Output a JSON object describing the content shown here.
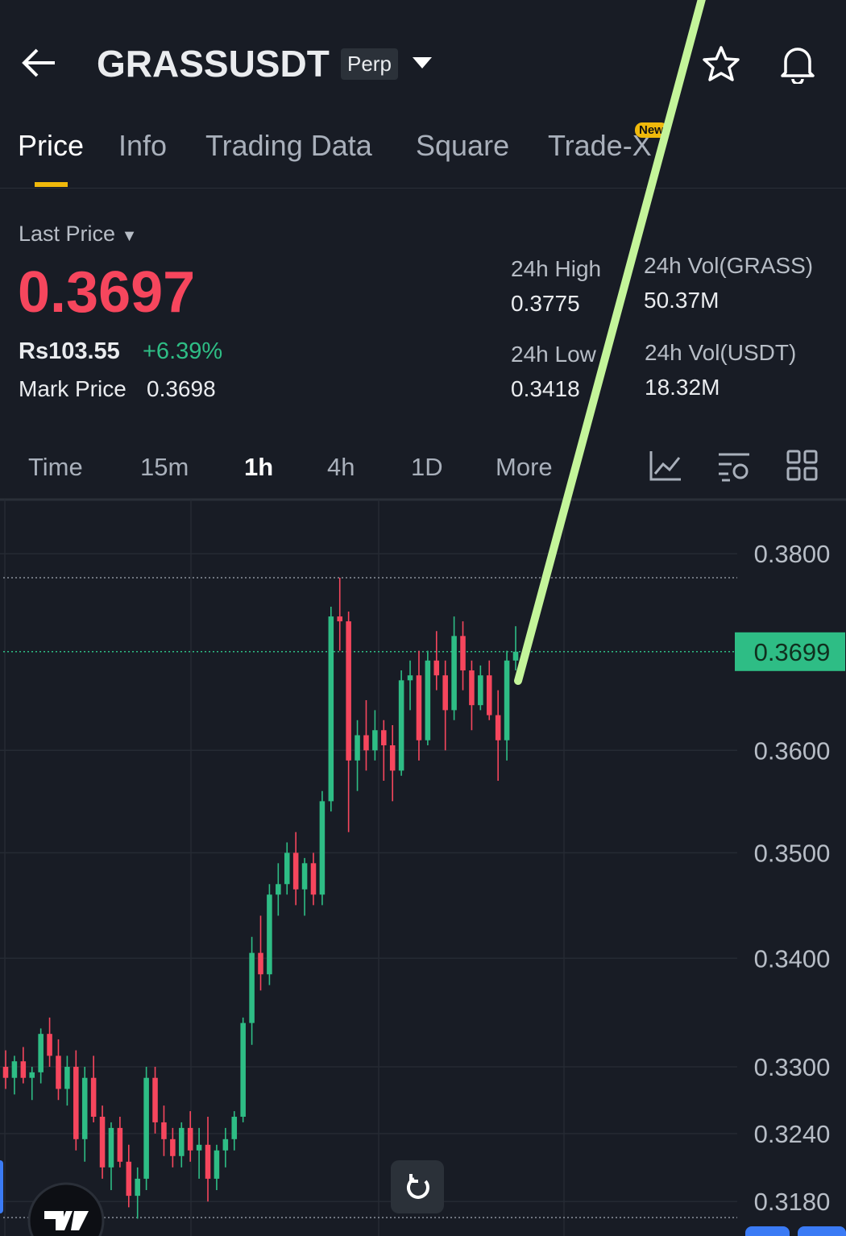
{
  "header": {
    "symbol": "GRASSUSDT",
    "badge": "Perp"
  },
  "tabs": {
    "items": [
      "Price",
      "Info",
      "Trading Data",
      "Square",
      "Trade-X"
    ],
    "active": 0,
    "new_badge": "New"
  },
  "last_price": {
    "label": "Last Price",
    "value": "0.3697",
    "local": "Rs103.55",
    "change": "+6.39%",
    "mark_label": "Mark Price",
    "mark_value": "0.3698"
  },
  "stats": [
    {
      "label": "24h High",
      "value": "0.3775"
    },
    {
      "label": "24h Vol(GRASS)",
      "value": "50.37M"
    },
    {
      "label": "24h Low",
      "value": "0.3418"
    },
    {
      "label": "24h Vol(USDT)",
      "value": "18.32M"
    }
  ],
  "intervals": {
    "items": [
      "Time",
      "15m",
      "1h",
      "4h",
      "1D",
      "More"
    ],
    "active": 2
  },
  "chart_data": {
    "type": "candlestick",
    "log_scale": true,
    "ylim": [
      0.315,
      0.3857
    ],
    "yticks": [
      {
        "value": 0.38,
        "label": "0.3800"
      },
      {
        "value": 0.36,
        "label": "0.3600"
      },
      {
        "value": 0.35,
        "label": "0.3500"
      },
      {
        "value": 0.34,
        "label": "0.3400"
      },
      {
        "value": 0.33,
        "label": "0.3300"
      },
      {
        "value": 0.324,
        "label": "0.3240"
      },
      {
        "value": 0.318,
        "label": "0.3180"
      }
    ],
    "last_tag": {
      "value": 0.3699,
      "label": "0.3699"
    },
    "high_line": 0.3775,
    "low_line": 0.3166,
    "up_color": "#2ebd85",
    "down_color": "#f6465d",
    "ohlc": [
      [
        0.33,
        0.3315,
        0.328,
        0.329
      ],
      [
        0.329,
        0.331,
        0.3275,
        0.3305
      ],
      [
        0.3305,
        0.3318,
        0.3285,
        0.329
      ],
      [
        0.329,
        0.33,
        0.327,
        0.3295
      ],
      [
        0.3295,
        0.3335,
        0.3285,
        0.333
      ],
      [
        0.333,
        0.3345,
        0.33,
        0.331
      ],
      [
        0.331,
        0.3325,
        0.327,
        0.328
      ],
      [
        0.328,
        0.331,
        0.3265,
        0.33
      ],
      [
        0.33,
        0.3315,
        0.3225,
        0.3235
      ],
      [
        0.3235,
        0.33,
        0.3215,
        0.329
      ],
      [
        0.329,
        0.331,
        0.325,
        0.3255
      ],
      [
        0.3255,
        0.3265,
        0.32,
        0.321
      ],
      [
        0.321,
        0.325,
        0.319,
        0.3245
      ],
      [
        0.3245,
        0.3255,
        0.321,
        0.3215
      ],
      [
        0.3215,
        0.323,
        0.3175,
        0.3185
      ],
      [
        0.3185,
        0.321,
        0.3165,
        0.32
      ],
      [
        0.32,
        0.33,
        0.319,
        0.329
      ],
      [
        0.329,
        0.33,
        0.324,
        0.325
      ],
      [
        0.325,
        0.3265,
        0.322,
        0.3235
      ],
      [
        0.3235,
        0.3245,
        0.321,
        0.322
      ],
      [
        0.322,
        0.325,
        0.321,
        0.3245
      ],
      [
        0.3245,
        0.326,
        0.3215,
        0.3225
      ],
      [
        0.3225,
        0.3245,
        0.32,
        0.323
      ],
      [
        0.323,
        0.3255,
        0.318,
        0.32
      ],
      [
        0.32,
        0.323,
        0.319,
        0.3225
      ],
      [
        0.3225,
        0.3245,
        0.321,
        0.3235
      ],
      [
        0.3235,
        0.326,
        0.3225,
        0.3255
      ],
      [
        0.3255,
        0.3345,
        0.325,
        0.334
      ],
      [
        0.334,
        0.342,
        0.332,
        0.3405
      ],
      [
        0.3405,
        0.344,
        0.337,
        0.3385
      ],
      [
        0.3385,
        0.347,
        0.3375,
        0.346
      ],
      [
        0.346,
        0.349,
        0.344,
        0.347
      ],
      [
        0.347,
        0.351,
        0.346,
        0.35
      ],
      [
        0.35,
        0.352,
        0.345,
        0.3465
      ],
      [
        0.3465,
        0.3495,
        0.344,
        0.349
      ],
      [
        0.349,
        0.35,
        0.345,
        0.346
      ],
      [
        0.346,
        0.356,
        0.345,
        0.355
      ],
      [
        0.355,
        0.3745,
        0.354,
        0.3735
      ],
      [
        0.3735,
        0.3775,
        0.37,
        0.373
      ],
      [
        0.373,
        0.374,
        0.352,
        0.359
      ],
      [
        0.359,
        0.363,
        0.356,
        0.3615
      ],
      [
        0.3615,
        0.365,
        0.358,
        0.36
      ],
      [
        0.36,
        0.364,
        0.359,
        0.362
      ],
      [
        0.362,
        0.363,
        0.357,
        0.3605
      ],
      [
        0.3605,
        0.3625,
        0.355,
        0.358
      ],
      [
        0.358,
        0.368,
        0.3575,
        0.367
      ],
      [
        0.367,
        0.369,
        0.364,
        0.3675
      ],
      [
        0.3675,
        0.37,
        0.359,
        0.361
      ],
      [
        0.361,
        0.37,
        0.3605,
        0.369
      ],
      [
        0.369,
        0.372,
        0.366,
        0.3675
      ],
      [
        0.3675,
        0.369,
        0.36,
        0.364
      ],
      [
        0.364,
        0.3735,
        0.363,
        0.3715
      ],
      [
        0.3715,
        0.373,
        0.366,
        0.368
      ],
      [
        0.368,
        0.369,
        0.362,
        0.3645
      ],
      [
        0.3645,
        0.3685,
        0.364,
        0.3675
      ],
      [
        0.3675,
        0.369,
        0.363,
        0.3635
      ],
      [
        0.3635,
        0.366,
        0.357,
        0.361
      ],
      [
        0.361,
        0.37,
        0.359,
        0.369
      ],
      [
        0.369,
        0.3725,
        0.368,
        0.3699
      ]
    ]
  }
}
